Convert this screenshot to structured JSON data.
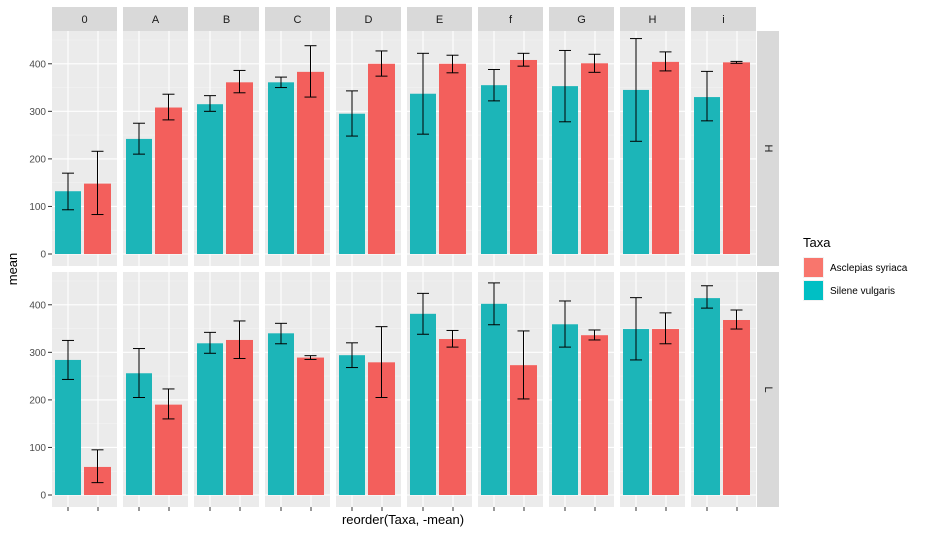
{
  "chart_data": {
    "type": "bar",
    "facet_columns": [
      "0",
      "A",
      "B",
      "C",
      "D",
      "E",
      "f",
      "G",
      "H",
      "i"
    ],
    "facet_rows": [
      "H",
      "L"
    ],
    "xlabel": "reorder(Taxa, -mean)",
    "ylabel": "mean",
    "ylim": [
      0,
      470
    ],
    "y_ticks": [
      0,
      100,
      200,
      300,
      400
    ],
    "grid": true,
    "legend": {
      "title": "Taxa",
      "position": "right",
      "entries": [
        {
          "label": "Asclepias syriaca",
          "color": "#F8766D"
        },
        {
          "label": "Silene vulgaris",
          "color": "#00BFC4"
        }
      ]
    },
    "series": [
      {
        "name": "Silene vulgaris",
        "color": "#1CB5B8",
        "H": {
          "values": [
            132,
            242,
            315,
            361,
            295,
            337,
            355,
            353,
            345,
            330
          ],
          "error": [
            [
              93,
              170
            ],
            [
              210,
              275
            ],
            [
              300,
              333
            ],
            [
              350,
              372
            ],
            [
              248,
              343
            ],
            [
              252,
              422
            ],
            [
              322,
              388
            ],
            [
              278,
              428
            ],
            [
              237,
              453
            ],
            [
              280,
              384
            ]
          ]
        },
        "L": {
          "values": [
            284,
            256,
            319,
            340,
            294,
            381,
            402,
            359,
            349,
            414
          ],
          "error": [
            [
              243,
              325
            ],
            [
              205,
              308
            ],
            [
              298,
              342
            ],
            [
              318,
              361
            ],
            [
              268,
              320
            ],
            [
              338,
              424
            ],
            [
              358,
              446
            ],
            [
              311,
              408
            ],
            [
              284,
              415
            ],
            [
              393,
              440
            ]
          ]
        }
      },
      {
        "name": "Asclepias syriaca",
        "color": "#F35F5C",
        "H": {
          "values": [
            148,
            308,
            361,
            383,
            400,
            400,
            408,
            401,
            404,
            403
          ],
          "error": [
            [
              83,
              216
            ],
            [
              282,
              336
            ],
            [
              339,
              386
            ],
            [
              330,
              438
            ],
            [
              374,
              427
            ],
            [
              381,
              418
            ],
            [
              395,
              422
            ],
            [
              382,
              420
            ],
            [
              385,
              425
            ],
            [
              401,
              405
            ]
          ]
        },
        "L": {
          "values": [
            59,
            190,
            326,
            289,
            279,
            328,
            273,
            336,
            349,
            368
          ],
          "error": [
            [
              26,
              95
            ],
            [
              160,
              223
            ],
            [
              287,
              366
            ],
            [
              285,
              293
            ],
            [
              205,
              354
            ],
            [
              311,
              346
            ],
            [
              202,
              345
            ],
            [
              326,
              347
            ],
            [
              318,
              383
            ],
            [
              349,
              389
            ]
          ]
        }
      }
    ]
  }
}
